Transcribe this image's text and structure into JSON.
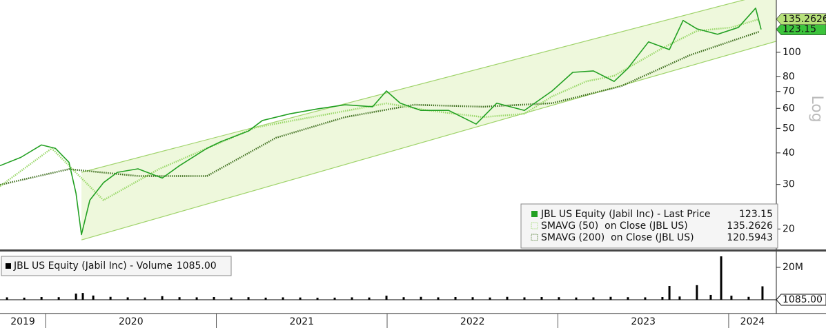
{
  "chart_data": {
    "type": "line",
    "scale_label": "Log",
    "log_scale": true,
    "xlim": [
      2019.733,
      2024.279
    ],
    "xticks": [
      2019,
      2020,
      2021,
      2022,
      2023,
      2024
    ],
    "ylim": [
      16.6,
      161
    ],
    "yticks": [
      20,
      30,
      40,
      50,
      60,
      70,
      80,
      100
    ],
    "trend_channel": {
      "color": "#9fd36a",
      "fill": "#eef8dc",
      "x": [
        2020.21,
        2024.279
      ],
      "upper": [
        33.5,
        174
      ],
      "lower": [
        18.1,
        110.6
      ]
    },
    "series": [
      {
        "name": "JBL US Equity (Jabil Inc) - Last Price",
        "color": "#22a022",
        "line_style": "solid",
        "x": [
          2019.733,
          2019.855,
          2019.976,
          2020.057,
          2020.137,
          2020.178,
          2020.21,
          2020.259,
          2020.339,
          2020.42,
          2020.541,
          2020.683,
          2020.784,
          2020.945,
          2021.026,
          2021.188,
          2021.269,
          2021.43,
          2021.592,
          2021.754,
          2021.915,
          2021.996,
          2022.077,
          2022.198,
          2022.36,
          2022.521,
          2022.642,
          2022.804,
          2022.966,
          2023.087,
          2023.208,
          2023.329,
          2023.41,
          2023.531,
          2023.653,
          2023.733,
          2023.814,
          2023.935,
          2024.057,
          2024.158,
          2024.19
        ],
        "values": [
          35.6,
          38.4,
          43,
          41.7,
          36.7,
          27.7,
          19.0,
          26,
          30.5,
          33.5,
          34.6,
          31.8,
          35.6,
          41.7,
          44.3,
          48.8,
          53.7,
          57.1,
          59.7,
          62,
          60.9,
          70.3,
          62.9,
          58.9,
          58.9,
          52,
          62.9,
          58.9,
          70.3,
          83.3,
          84.4,
          76.7,
          86.4,
          110,
          102.5,
          133.6,
          123.8,
          117.8,
          125.4,
          149.5,
          123.15
        ]
      },
      {
        "name": "SMAVG (50)  on Close (JBL US)",
        "color": "#9ad86a",
        "line_style": "dotted",
        "x": [
          2019.733,
          2020.036,
          2020.339,
          2020.663,
          2021.228,
          2021.996,
          2022.238,
          2022.562,
          2022.804,
          2022.966,
          2023.168,
          2023.329,
          2023.612,
          2023.814,
          2024.016,
          2024.178
        ],
        "values": [
          29.5,
          41.7,
          26,
          34.5,
          50.4,
          62.8,
          58.9,
          55.4,
          57.1,
          66.9,
          76.8,
          80.7,
          103.9,
          121.5,
          125.4,
          135.2626
        ]
      },
      {
        "name": "SMAVG (200)  on Close (JBL US)",
        "color": "#3f6f1f",
        "line_style": "dotted",
        "x": [
          2019.733,
          2020.137,
          2020.541,
          2020.945,
          2021.349,
          2021.754,
          2022.158,
          2022.562,
          2022.966,
          2023.37,
          2023.774,
          2024.178
        ],
        "values": [
          29.9,
          34.5,
          32.4,
          32.4,
          45.9,
          55.4,
          62,
          60.9,
          62.9,
          73.4,
          97.5,
          120.5943
        ]
      }
    ],
    "volume": {
      "type": "bar",
      "name": "JBL US Equity (Jabil Inc) - Volume",
      "color": "#000000",
      "last_value_label": "1085.00",
      "ylim": [
        0,
        28500000
      ],
      "yticks": [
        {
          "value": 20000000,
          "label": "20M"
        }
      ],
      "x": [
        2019.774,
        2019.875,
        2019.976,
        2020.077,
        2020.178,
        2020.218,
        2020.279,
        2020.38,
        2020.481,
        2020.582,
        2020.683,
        2020.784,
        2020.885,
        2020.986,
        2021.087,
        2021.188,
        2021.289,
        2021.39,
        2021.491,
        2021.592,
        2021.693,
        2021.794,
        2021.895,
        2021.996,
        2022.097,
        2022.198,
        2022.299,
        2022.4,
        2022.501,
        2022.602,
        2022.703,
        2022.804,
        2022.905,
        2023.006,
        2023.107,
        2023.208,
        2023.309,
        2023.41,
        2023.511,
        2023.612,
        2023.653,
        2023.713,
        2023.814,
        2023.895,
        2023.956,
        2024.016,
        2024.117,
        2024.198,
        2024.21
      ],
      "values": [
        1500000,
        1300000,
        1700000,
        1600000,
        3800000,
        4200000,
        2600000,
        1800000,
        1500000,
        1400000,
        2200000,
        1600000,
        1500000,
        1700000,
        1400000,
        1600000,
        1300000,
        1500000,
        1400000,
        1200000,
        1300000,
        1500000,
        1400000,
        2500000,
        1600000,
        1800000,
        1500000,
        1700000,
        1600000,
        1400000,
        1800000,
        1500000,
        1700000,
        1600000,
        1400000,
        1500000,
        1800000,
        1600000,
        1500000,
        1700000,
        8500000,
        2000000,
        9000000,
        3000000,
        26800000,
        2500000,
        1800000,
        8300000,
        1085
      ]
    }
  }
}
